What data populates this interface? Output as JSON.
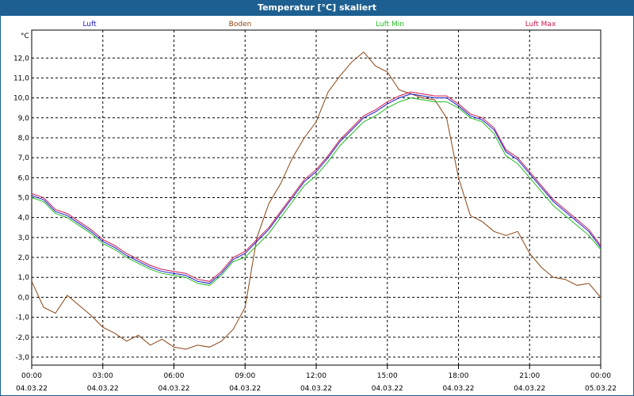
{
  "window": {
    "title": "Temperatur [°C] skaliert"
  },
  "chart_data": {
    "type": "line",
    "unit_label": "°C",
    "ylim": [
      -3.4,
      13.4
    ],
    "xlim_hours": [
      0,
      24
    ],
    "y_ticks": [
      "12,0",
      "11,0",
      "10,0",
      "9,0",
      "8,0",
      "7,0",
      "6,0",
      "5,0",
      "4,0",
      "3,0",
      "2,0",
      "1,0",
      "0,0",
      "-1,0",
      "-2,0",
      "-3,0"
    ],
    "x_ticks": [
      {
        "time": "00:00",
        "date": "04.03.22"
      },
      {
        "time": "03:00",
        "date": "04.03.22"
      },
      {
        "time": "06:00",
        "date": "04.03.22"
      },
      {
        "time": "09:00",
        "date": "04.03.22"
      },
      {
        "time": "12:00",
        "date": "04.03.22"
      },
      {
        "time": "15:00",
        "date": "04.03.22"
      },
      {
        "time": "18:00",
        "date": "04.03.22"
      },
      {
        "time": "21:00",
        "date": "04.03.22"
      },
      {
        "time": "00:00",
        "date": "05.03.22"
      }
    ],
    "grid": true,
    "legend_position": "top",
    "series": [
      {
        "name": "Luft",
        "color": "#1a1acc",
        "points": [
          [
            0,
            5.1
          ],
          [
            0.5,
            4.9
          ],
          [
            1,
            4.3
          ],
          [
            1.5,
            4.1
          ],
          [
            2,
            3.7
          ],
          [
            2.5,
            3.3
          ],
          [
            3,
            2.8
          ],
          [
            3.5,
            2.5
          ],
          [
            4,
            2.1
          ],
          [
            4.5,
            1.8
          ],
          [
            5,
            1.5
          ],
          [
            5.5,
            1.3
          ],
          [
            6,
            1.2
          ],
          [
            6.5,
            1.1
          ],
          [
            7,
            0.8
          ],
          [
            7.5,
            0.7
          ],
          [
            8,
            1.2
          ],
          [
            8.5,
            1.9
          ],
          [
            9,
            2.2
          ],
          [
            9.5,
            2.8
          ],
          [
            10,
            3.4
          ],
          [
            10.5,
            4.2
          ],
          [
            11,
            5.0
          ],
          [
            11.5,
            5.8
          ],
          [
            12,
            6.3
          ],
          [
            12.5,
            7.0
          ],
          [
            13,
            7.8
          ],
          [
            13.5,
            8.4
          ],
          [
            14,
            9.0
          ],
          [
            14.5,
            9.3
          ],
          [
            15,
            9.7
          ],
          [
            15.5,
            10.0
          ],
          [
            16,
            10.2
          ],
          [
            16.5,
            10.1
          ],
          [
            17,
            10.0
          ],
          [
            17.5,
            10.0
          ],
          [
            18,
            9.6
          ],
          [
            18.5,
            9.1
          ],
          [
            19,
            8.9
          ],
          [
            19.5,
            8.4
          ],
          [
            20,
            7.3
          ],
          [
            20.5,
            6.9
          ],
          [
            21,
            6.2
          ],
          [
            21.5,
            5.5
          ],
          [
            22,
            4.8
          ],
          [
            22.5,
            4.3
          ],
          [
            23,
            3.8
          ],
          [
            23.5,
            3.3
          ],
          [
            24,
            2.5
          ]
        ]
      },
      {
        "name": "Boden",
        "color": "#8b4513",
        "points": [
          [
            0,
            0.8
          ],
          [
            0.5,
            -0.5
          ],
          [
            1,
            -0.8
          ],
          [
            1.5,
            0.1
          ],
          [
            2,
            -0.4
          ],
          [
            2.5,
            -0.9
          ],
          [
            3,
            -1.5
          ],
          [
            3.5,
            -1.8
          ],
          [
            4,
            -2.2
          ],
          [
            4.5,
            -1.9
          ],
          [
            5,
            -2.4
          ],
          [
            5.5,
            -2.1
          ],
          [
            6,
            -2.5
          ],
          [
            6.5,
            -2.6
          ],
          [
            7,
            -2.4
          ],
          [
            7.5,
            -2.5
          ],
          [
            8,
            -2.2
          ],
          [
            8.5,
            -1.6
          ],
          [
            9,
            -0.5
          ],
          [
            9.5,
            3.0
          ],
          [
            10,
            4.7
          ],
          [
            10.5,
            5.7
          ],
          [
            11,
            7.0
          ],
          [
            11.5,
            8.0
          ],
          [
            12,
            8.8
          ],
          [
            12.5,
            10.3
          ],
          [
            13,
            11.1
          ],
          [
            13.5,
            11.8
          ],
          [
            14,
            12.3
          ],
          [
            14.5,
            11.6
          ],
          [
            15,
            11.3
          ],
          [
            15.5,
            10.4
          ],
          [
            16,
            10.2
          ],
          [
            16.5,
            10.0
          ],
          [
            17,
            9.9
          ],
          [
            17.5,
            9.0
          ],
          [
            18,
            6.0
          ],
          [
            18.5,
            4.1
          ],
          [
            19,
            3.8
          ],
          [
            19.5,
            3.3
          ],
          [
            20,
            3.1
          ],
          [
            20.5,
            3.3
          ],
          [
            21,
            2.2
          ],
          [
            21.5,
            1.5
          ],
          [
            22,
            1.0
          ],
          [
            22.5,
            0.9
          ],
          [
            23,
            0.6
          ],
          [
            23.5,
            0.7
          ],
          [
            24,
            0.0
          ]
        ]
      },
      {
        "name": "Luft Min",
        "color": "#22bb22",
        "points": [
          [
            0,
            5.0
          ],
          [
            0.5,
            4.8
          ],
          [
            1,
            4.2
          ],
          [
            1.5,
            4.0
          ],
          [
            2,
            3.6
          ],
          [
            2.5,
            3.2
          ],
          [
            3,
            2.7
          ],
          [
            3.5,
            2.4
          ],
          [
            4,
            2.0
          ],
          [
            4.5,
            1.7
          ],
          [
            5,
            1.4
          ],
          [
            5.5,
            1.2
          ],
          [
            6,
            1.1
          ],
          [
            6.5,
            1.0
          ],
          [
            7,
            0.7
          ],
          [
            7.5,
            0.6
          ],
          [
            8,
            1.1
          ],
          [
            8.5,
            1.8
          ],
          [
            9,
            2.0
          ],
          [
            9.5,
            2.6
          ],
          [
            10,
            3.2
          ],
          [
            10.5,
            4.0
          ],
          [
            11,
            4.8
          ],
          [
            11.5,
            5.6
          ],
          [
            12,
            6.1
          ],
          [
            12.5,
            6.8
          ],
          [
            13,
            7.6
          ],
          [
            13.5,
            8.2
          ],
          [
            14,
            8.8
          ],
          [
            14.5,
            9.1
          ],
          [
            15,
            9.5
          ],
          [
            15.5,
            9.8
          ],
          [
            16,
            10.0
          ],
          [
            16.5,
            9.9
          ],
          [
            17,
            9.8
          ],
          [
            17.5,
            9.8
          ],
          [
            18,
            9.5
          ],
          [
            18.5,
            9.0
          ],
          [
            19,
            8.8
          ],
          [
            19.5,
            8.2
          ],
          [
            20,
            7.1
          ],
          [
            20.5,
            6.7
          ],
          [
            21,
            6.0
          ],
          [
            21.5,
            5.3
          ],
          [
            22,
            4.6
          ],
          [
            22.5,
            4.1
          ],
          [
            23,
            3.6
          ],
          [
            23.5,
            3.1
          ],
          [
            24,
            2.4
          ]
        ]
      },
      {
        "name": "Luft Max",
        "color": "#cc1a4a",
        "points": [
          [
            0,
            5.2
          ],
          [
            0.5,
            5.0
          ],
          [
            1,
            4.4
          ],
          [
            1.5,
            4.2
          ],
          [
            2,
            3.8
          ],
          [
            2.5,
            3.4
          ],
          [
            3,
            2.9
          ],
          [
            3.5,
            2.6
          ],
          [
            4,
            2.2
          ],
          [
            4.5,
            1.9
          ],
          [
            5,
            1.6
          ],
          [
            5.5,
            1.4
          ],
          [
            6,
            1.3
          ],
          [
            6.5,
            1.2
          ],
          [
            7,
            0.9
          ],
          [
            7.5,
            0.8
          ],
          [
            8,
            1.3
          ],
          [
            8.5,
            2.0
          ],
          [
            9,
            2.3
          ],
          [
            9.5,
            2.9
          ],
          [
            10,
            3.5
          ],
          [
            10.5,
            4.3
          ],
          [
            11,
            5.1
          ],
          [
            11.5,
            5.9
          ],
          [
            12,
            6.4
          ],
          [
            12.5,
            7.1
          ],
          [
            13,
            7.9
          ],
          [
            13.5,
            8.5
          ],
          [
            14,
            9.1
          ],
          [
            14.5,
            9.4
          ],
          [
            15,
            9.8
          ],
          [
            15.5,
            10.1
          ],
          [
            16,
            10.3
          ],
          [
            16.5,
            10.2
          ],
          [
            17,
            10.1
          ],
          [
            17.5,
            10.1
          ],
          [
            18,
            9.7
          ],
          [
            18.5,
            9.2
          ],
          [
            19,
            9.0
          ],
          [
            19.5,
            8.5
          ],
          [
            20,
            7.4
          ],
          [
            20.5,
            7.0
          ],
          [
            21,
            6.3
          ],
          [
            21.5,
            5.6
          ],
          [
            22,
            4.9
          ],
          [
            22.5,
            4.4
          ],
          [
            23,
            3.9
          ],
          [
            23.5,
            3.4
          ],
          [
            24,
            2.6
          ]
        ]
      }
    ]
  }
}
